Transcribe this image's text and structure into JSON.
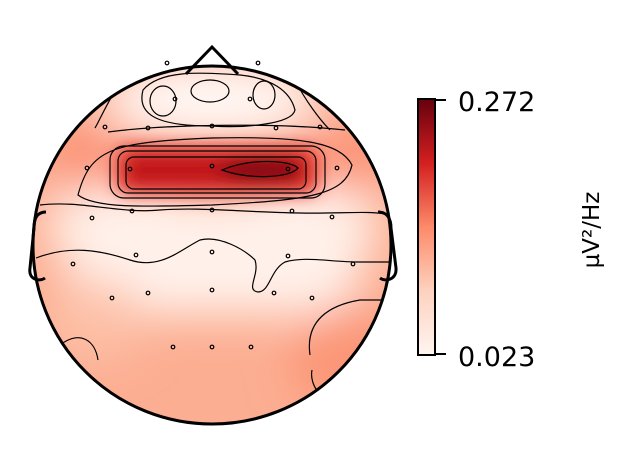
{
  "chart_data": {
    "type": "heatmap",
    "subtype": "eeg-topomap",
    "title": "",
    "colormap": "Reds",
    "colorbar": {
      "min_label": "0.023",
      "max_label": "0.272",
      "unit_label": "µV²/Hz",
      "min": 0.023,
      "max": 0.272
    },
    "colors": {
      "low": "#fff5f0",
      "mid": "#fb6a4a",
      "high": "#67000d",
      "outline": "#000000"
    },
    "sensor_count": 32
  }
}
